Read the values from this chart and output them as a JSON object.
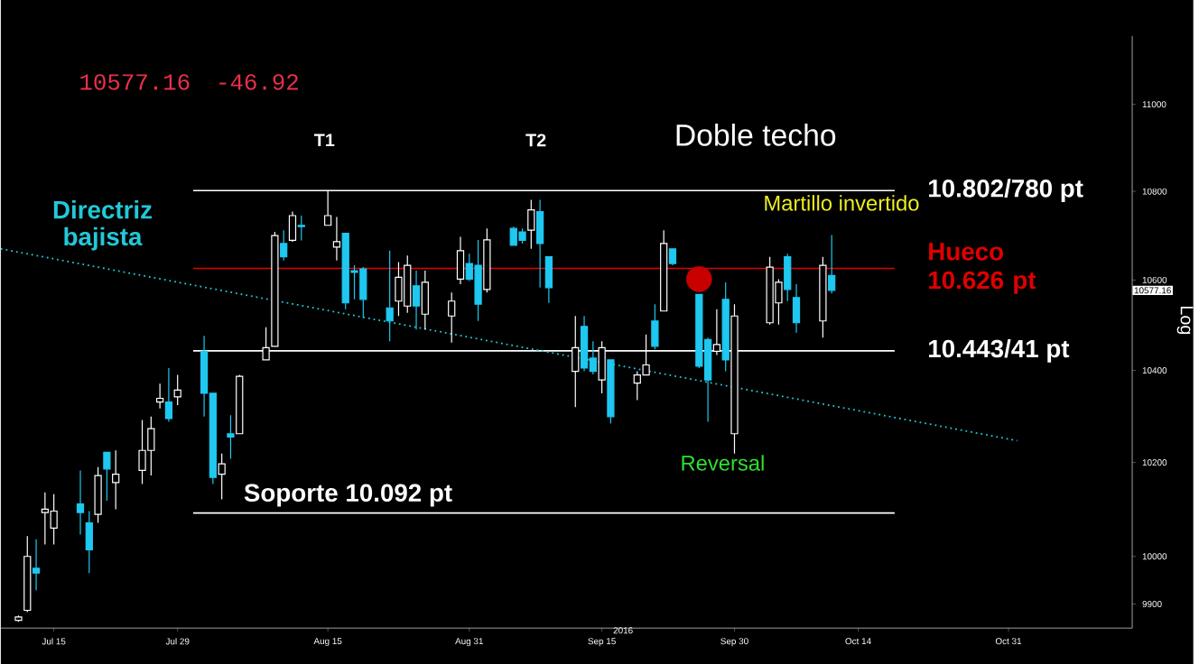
{
  "chart_data": {
    "type": "candlestick",
    "title": "10577.16",
    "subtitle": "-46.92",
    "xlabel": "2016",
    "ylabel": "Log",
    "x": [
      "2016-07-11",
      "2016-07-12",
      "2016-07-13",
      "2016-07-14",
      "2016-07-15",
      "2016-07-18",
      "2016-07-19",
      "2016-07-20",
      "2016-07-21",
      "2016-07-22",
      "2016-07-25",
      "2016-07-26",
      "2016-07-27",
      "2016-07-28",
      "2016-07-29",
      "2016-08-01",
      "2016-08-02",
      "2016-08-03",
      "2016-08-04",
      "2016-08-05",
      "2016-08-08",
      "2016-08-09",
      "2016-08-10",
      "2016-08-11",
      "2016-08-12",
      "2016-08-15",
      "2016-08-16",
      "2016-08-17",
      "2016-08-18",
      "2016-08-19",
      "2016-08-22",
      "2016-08-23",
      "2016-08-24",
      "2016-08-25",
      "2016-08-26",
      "2016-08-29",
      "2016-08-30",
      "2016-08-31",
      "2016-09-01",
      "2016-09-02",
      "2016-09-05",
      "2016-09-06",
      "2016-09-07",
      "2016-09-08",
      "2016-09-09",
      "2016-09-12",
      "2016-09-13",
      "2016-09-14",
      "2016-09-15",
      "2016-09-16",
      "2016-09-19",
      "2016-09-20",
      "2016-09-21",
      "2016-09-22",
      "2016-09-23",
      "2016-09-26",
      "2016-09-27",
      "2016-09-28",
      "2016-09-29",
      "2016-09-30",
      "2016-10-04",
      "2016-10-05",
      "2016-10-06",
      "2016-10-07",
      "2016-10-10",
      "2016-10-11"
    ],
    "ohlc": [
      [
        9866,
        9876,
        9863,
        9873
      ],
      [
        9887,
        10043,
        9883,
        10000
      ],
      [
        9975,
        10036,
        9929,
        9965
      ],
      [
        10093,
        10136,
        10025,
        10100
      ],
      [
        10060,
        10132,
        10025,
        10096
      ],
      [
        10111,
        10183,
        10046,
        10093
      ],
      [
        10071,
        10096,
        9965,
        10014
      ],
      [
        10089,
        10190,
        10071,
        10172
      ],
      [
        10222,
        10222,
        10118,
        10186
      ],
      [
        10157,
        10226,
        10100,
        10175
      ],
      [
        10183,
        10292,
        10154,
        10226
      ],
      [
        10226,
        10299,
        10172,
        10273
      ],
      [
        10331,
        10371,
        10317,
        10339
      ],
      [
        10331,
        10405,
        10288,
        10295
      ],
      [
        10342,
        10390,
        10324,
        10357
      ],
      [
        10442,
        10476,
        10299,
        10350
      ],
      [
        10350,
        10350,
        10154,
        10168
      ],
      [
        10175,
        10219,
        10121,
        10197
      ],
      [
        10262,
        10302,
        10208,
        10255
      ],
      [
        10262,
        10390,
        10262,
        10387
      ],
      [
        10423,
        10495,
        10423,
        10450
      ],
      [
        10453,
        10708,
        10453,
        10700
      ],
      [
        10682,
        10712,
        10644,
        10652
      ],
      [
        10689,
        10754,
        10686,
        10745
      ],
      [
        10723,
        10745,
        10689,
        10720
      ],
      [
        10723,
        10803,
        10723,
        10745
      ],
      [
        10674,
        10742,
        10644,
        10686
      ],
      [
        10705,
        10705,
        10535,
        10549
      ],
      [
        10621,
        10633,
        10557,
        10617
      ],
      [
        10625,
        10629,
        10516,
        10557
      ],
      [
        10538,
        10666,
        10464,
        10509
      ],
      [
        10553,
        10640,
        10520,
        10606
      ],
      [
        10542,
        10655,
        10527,
        10633
      ],
      [
        10587,
        10621,
        10490,
        10542
      ],
      [
        10524,
        10621,
        10490,
        10595
      ],
      [
        10520,
        10572,
        10461,
        10553
      ],
      [
        10602,
        10697,
        10591,
        10666
      ],
      [
        10637,
        10659,
        10598,
        10602
      ],
      [
        10633,
        10690,
        10509,
        10546
      ],
      [
        10579,
        10716,
        10572,
        10690
      ],
      [
        10716,
        10720,
        10678,
        10678
      ],
      [
        10708,
        10716,
        10682,
        10689
      ],
      [
        10712,
        10781,
        10670,
        10758
      ],
      [
        10754,
        10781,
        10583,
        10682
      ],
      [
        10652,
        10652,
        10549,
        10583
      ],
      [
        10398,
        10520,
        10320,
        10450
      ],
      [
        10497,
        10520,
        10398,
        10405
      ],
      [
        10427,
        10464,
        10391,
        10398
      ],
      [
        10379,
        10464,
        10350,
        10450
      ],
      [
        10423,
        10423,
        10284,
        10299
      ],
      [
        10372,
        10398,
        10335,
        10390
      ],
      [
        10390,
        10479,
        10390,
        10412
      ],
      [
        10509,
        10546,
        10446,
        10453
      ],
      [
        10531,
        10712,
        10531,
        10682
      ],
      [
        10670,
        10670,
        10633,
        10637
      ],
      [
        10568,
        10568,
        10405,
        10409
      ],
      [
        10468,
        10472,
        10288,
        10379
      ],
      [
        10442,
        10535,
        10434,
        10457
      ],
      [
        10557,
        10595,
        10398,
        10423
      ],
      [
        10262,
        10546,
        10219,
        10520
      ],
      [
        10505,
        10652,
        10501,
        10629
      ],
      [
        10549,
        10602,
        10501,
        10595
      ],
      [
        10652,
        10659,
        10553,
        10579
      ],
      [
        10561,
        10591,
        10483,
        10505
      ],
      [
        10509,
        10652,
        10472,
        10633
      ],
      [
        10610,
        10701,
        10570,
        10577
      ]
    ],
    "colors": [
      "#ffffff",
      "#ffffff",
      "#1ec8f0",
      "#ffffff",
      "#ffffff",
      "#1ec8f0",
      "#1ec8f0",
      "#ffffff",
      "#1ec8f0",
      "#ffffff",
      "#ffffff",
      "#ffffff",
      "#ffffff",
      "#1ec8f0",
      "#ffffff",
      "#1ec8f0",
      "#1ec8f0",
      "#ffffff",
      "#1ec8f0",
      "#ffffff",
      "#ffffff",
      "#ffffff",
      "#1ec8f0",
      "#ffffff",
      "#1ec8f0",
      "#ffffff",
      "#ffffff",
      "#1ec8f0",
      "#1ec8f0",
      "#1ec8f0",
      "#1ec8f0",
      "#ffffff",
      "#ffffff",
      "#1ec8f0",
      "#ffffff",
      "#ffffff",
      "#ffffff",
      "#1ec8f0",
      "#1ec8f0",
      "#ffffff",
      "#1ec8f0",
      "#1ec8f0",
      "#ffffff",
      "#1ec8f0",
      "#1ec8f0",
      "#ffffff",
      "#1ec8f0",
      "#1ec8f0",
      "#ffffff",
      "#1ec8f0",
      "#ffffff",
      "#ffffff",
      "#1ec8f0",
      "#ffffff",
      "#1ec8f0",
      "#1ec8f0",
      "#1ec8f0",
      "#ffffff",
      "#1ec8f0",
      "#ffffff",
      "#ffffff",
      "#ffffff",
      "#1ec8f0",
      "#1ec8f0",
      "#ffffff",
      "#1ec8f0"
    ],
    "series": [
      {
        "type": "line",
        "name": "Directriz bajista",
        "color": "#22c8d8",
        "line_style": "dotted",
        "x": [
          "2016-07-09",
          "2016-11-01"
        ],
        "values": [
          10670,
          10247
        ]
      },
      {
        "type": "scatter",
        "color": "#c80000",
        "marker": "circle",
        "x": [
          "2016-09-26"
        ],
        "values": [
          10602
        ]
      }
    ],
    "ref_lines": [
      {
        "axis": "y",
        "value": 10802,
        "label": "10.802/780 pt",
        "color": "#ffffff"
      },
      {
        "axis": "y",
        "value": 10626,
        "label": "Hueco 10.626 pt",
        "color": "#e00000"
      },
      {
        "axis": "y",
        "value": 10443,
        "label": "10.443/41 pt",
        "color": "#ffffff"
      },
      {
        "axis": "y",
        "value": 10092,
        "label": "Soporte 10.092 pt",
        "color": "#ffffff"
      }
    ],
    "annotations": [
      "T1",
      "T2",
      "Doble techo",
      "Martillo invertido",
      "Reversal",
      "10577.16"
    ],
    "xlim": [
      "2016-07-09",
      "2016-11-14"
    ],
    "xticks": [
      {
        "value": "2016-07-15",
        "label": "Jul 15"
      },
      {
        "value": "2016-07-29",
        "label": "Jul 29"
      },
      {
        "value": "2016-08-15",
        "label": "Aug 15"
      },
      {
        "value": "2016-08-31",
        "label": "Aug 31"
      },
      {
        "value": "2016-09-15",
        "label": "Sep 15"
      },
      {
        "value": "2016-09-30",
        "label": "Sep 30"
      },
      {
        "value": "2016-10-14",
        "label": "Oct 14"
      },
      {
        "value": "2016-10-31",
        "label": "Oct 31"
      }
    ],
    "ylim": [
      9850,
      11160
    ],
    "yticks": [
      9900,
      10000,
      10200,
      10400,
      10600,
      10800,
      11000
    ],
    "log": true,
    "grid": false
  }
}
